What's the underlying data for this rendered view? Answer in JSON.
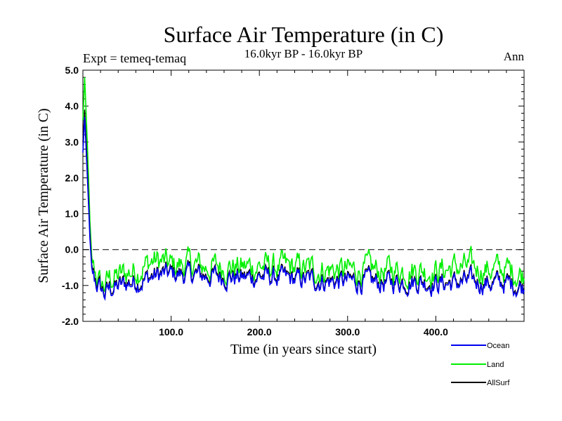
{
  "chart_data": {
    "type": "line",
    "title": "Surface Air Temperature (in C)",
    "subtitle": "16.0kyr BP - 16.0kyr BP",
    "experiment_label": "Expt = temeq-temaq",
    "season_label": "Ann",
    "xlabel": "Time (in years since start)",
    "ylabel": "Surface Air Temperature (in C)",
    "xlim": [
      0,
      500
    ],
    "ylim": [
      -2.0,
      5.0
    ],
    "x_ticks": [
      100,
      200,
      300,
      400
    ],
    "x_tick_labels": [
      "100.0",
      "200.0",
      "300.0",
      "400.0"
    ],
    "y_ticks": [
      -2,
      -1,
      0,
      1,
      2,
      3,
      4,
      5
    ],
    "y_tick_labels": [
      "-2.0",
      "-1.0",
      "0.0",
      "1.0",
      "2.0",
      "3.0",
      "4.0",
      "5.0"
    ],
    "reference_line": {
      "y": 0.0,
      "style": "dashed"
    },
    "series": [
      {
        "name": "Ocean",
        "color": "#0000ee",
        "x": [
          0,
          2,
          4,
          6,
          8,
          10,
          12,
          15,
          20,
          25,
          30,
          40,
          50,
          60,
          70,
          80,
          90,
          100,
          120,
          140,
          160,
          180,
          200,
          220,
          240,
          260,
          280,
          300,
          320,
          340,
          360,
          380,
          400,
          420,
          440,
          460,
          480,
          500
        ],
        "values": [
          2.7,
          3.7,
          2.6,
          1.5,
          0.3,
          -0.5,
          -0.8,
          -0.95,
          -1.1,
          -1.25,
          -1.1,
          -1.05,
          -0.95,
          -0.9,
          -0.85,
          -0.75,
          -0.7,
          -0.7,
          -0.7,
          -0.75,
          -0.75,
          -0.8,
          -0.75,
          -0.8,
          -0.85,
          -0.85,
          -0.9,
          -0.9,
          -0.9,
          -0.95,
          -0.9,
          -0.9,
          -0.95,
          -0.95,
          -0.9,
          -0.95,
          -0.95,
          -1.05
        ]
      },
      {
        "name": "Land",
        "color": "#00ee00",
        "x": [
          0,
          2,
          4,
          6,
          8,
          10,
          12,
          15,
          20,
          25,
          30,
          40,
          50,
          60,
          70,
          80,
          90,
          100,
          120,
          140,
          160,
          180,
          200,
          220,
          240,
          260,
          280,
          300,
          320,
          340,
          360,
          380,
          400,
          420,
          440,
          460,
          480,
          500
        ],
        "values": [
          3.6,
          4.8,
          3.6,
          2.3,
          0.8,
          -0.2,
          -0.55,
          -0.7,
          -1.0,
          -1.0,
          -0.8,
          -0.75,
          -0.65,
          -0.55,
          -0.45,
          -0.3,
          -0.35,
          -0.45,
          -0.4,
          -0.5,
          -0.45,
          -0.5,
          -0.45,
          -0.5,
          -0.5,
          -0.55,
          -0.55,
          -0.6,
          -0.55,
          -0.6,
          -0.55,
          -0.55,
          -0.6,
          -0.5,
          -0.5,
          -0.55,
          -0.55,
          -0.7
        ]
      },
      {
        "name": "AllSurf",
        "color": "#000000",
        "x": [
          0,
          2,
          4,
          6,
          8,
          10,
          12,
          15,
          20,
          25,
          30,
          40,
          50,
          60,
          70,
          80,
          90,
          100,
          120,
          140,
          160,
          180,
          200,
          220,
          240,
          260,
          280,
          300,
          320,
          340,
          360,
          380,
          400,
          420,
          440,
          460,
          480,
          500
        ],
        "values": [
          3.0,
          3.9,
          2.9,
          1.7,
          0.45,
          -0.4,
          -0.72,
          -0.88,
          -1.05,
          -1.2,
          -1.05,
          -1.0,
          -0.9,
          -0.85,
          -0.8,
          -0.7,
          -0.65,
          -0.65,
          -0.65,
          -0.7,
          -0.7,
          -0.75,
          -0.7,
          -0.75,
          -0.8,
          -0.8,
          -0.85,
          -0.85,
          -0.85,
          -0.9,
          -0.85,
          -0.85,
          -0.9,
          -0.9,
          -0.85,
          -0.9,
          -0.9,
          -1.0
        ]
      }
    ],
    "legend_position": "bottom-right"
  }
}
